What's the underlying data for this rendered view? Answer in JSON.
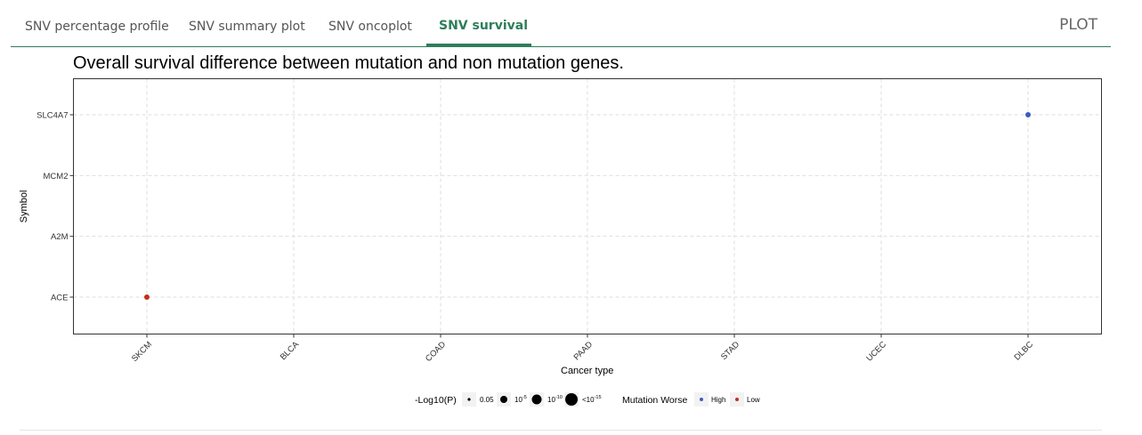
{
  "tabs": [
    {
      "label": "SNV percentage profile"
    },
    {
      "label": "SNV summary plot"
    },
    {
      "label": "SNV oncoplot"
    },
    {
      "label": "SNV survival",
      "active": true
    }
  ],
  "plot_label": "PLOT",
  "chart_data": {
    "type": "scatter",
    "title": "Overall survival difference between mutation and non mutation genes.",
    "xlabel": "Cancer type",
    "ylabel": "Symbol",
    "x_categories": [
      "SKCM",
      "BLCA",
      "COAD",
      "PAAD",
      "STAD",
      "UCEC",
      "DLBC"
    ],
    "y_categories": [
      "ACE",
      "A2M",
      "MCM2",
      "SLC4A7"
    ],
    "grid": true,
    "legend_position": "bottom",
    "points": [
      {
        "x": "SKCM",
        "y": "ACE",
        "group": "Low"
      },
      {
        "x": "DLBC",
        "y": "SLC4A7",
        "group": "High"
      }
    ],
    "size_legend": {
      "title": "-Log10(P)",
      "entries": [
        {
          "label": "0.05"
        },
        {
          "label": "10",
          "sup": "-5"
        },
        {
          "label": "10",
          "sup": "-10"
        },
        {
          "label": "<10",
          "sup": "-15"
        }
      ]
    },
    "color_legend": {
      "title": "Mutation Worse",
      "entries": [
        {
          "label": "High",
          "color": "#3b5bc4"
        },
        {
          "label": "Low",
          "color": "#c0301e"
        }
      ]
    }
  }
}
